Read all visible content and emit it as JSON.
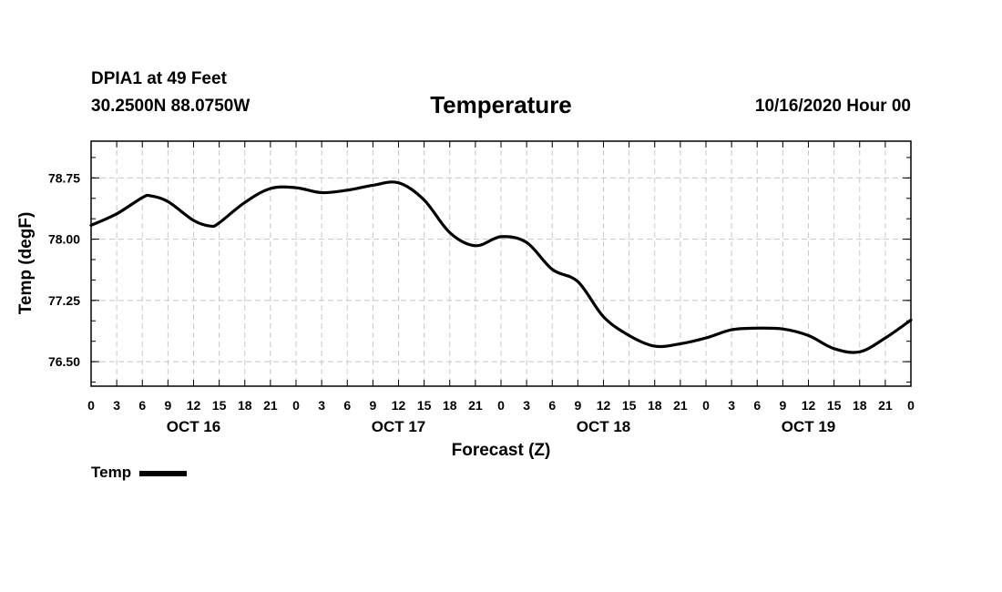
{
  "header": {
    "station": "DPIA1 at 49 Feet",
    "coords": "30.2500N 88.0750W",
    "title": "Temperature",
    "issued": "10/16/2020 Hour 00"
  },
  "legend": {
    "label": "Temp"
  },
  "chart_data": {
    "type": "line",
    "title": "Temperature",
    "xlabel": "Forecast (Z)",
    "ylabel": "Temp (degF)",
    "xlim": [
      0,
      96
    ],
    "ylim": [
      76.2,
      79.2
    ],
    "y_ticks": [
      76.5,
      77.25,
      78.0,
      78.75
    ],
    "y_tick_labels": [
      "76.50",
      "77.25",
      "78.00",
      "78.75"
    ],
    "x_tick_hours": [
      0,
      3,
      6,
      9,
      12,
      15,
      18,
      21,
      24,
      27,
      30,
      33,
      36,
      39,
      42,
      45,
      48,
      51,
      54,
      57,
      60,
      63,
      66,
      69,
      72,
      75,
      78,
      81,
      84,
      87,
      90,
      93,
      96
    ],
    "x_tick_labels": [
      "0",
      "3",
      "6",
      "9",
      "12",
      "15",
      "18",
      "21",
      "0",
      "3",
      "6",
      "9",
      "12",
      "15",
      "18",
      "21",
      "0",
      "3",
      "6",
      "9",
      "12",
      "15",
      "18",
      "21",
      "0",
      "3",
      "6",
      "9",
      "12",
      "15",
      "18",
      "21",
      "0"
    ],
    "day_labels": [
      {
        "hour": 12,
        "label": "OCT 16"
      },
      {
        "hour": 36,
        "label": "OCT 17"
      },
      {
        "hour": 60,
        "label": "OCT 18"
      },
      {
        "hour": 84,
        "label": "OCT 19"
      }
    ],
    "grid": true,
    "legend_position": "bottom-left",
    "series": [
      {
        "name": "Temp",
        "color": "#000000",
        "x": [
          0,
          3,
          6,
          7,
          9,
          12,
          14,
          15,
          18,
          21,
          24,
          27,
          30,
          33,
          36,
          39,
          42,
          45,
          48,
          51,
          54,
          57,
          60,
          63,
          66,
          69,
          72,
          75,
          78,
          81,
          84,
          87,
          90,
          93,
          96
        ],
        "values": [
          78.17,
          78.31,
          78.51,
          78.53,
          78.46,
          78.23,
          78.16,
          78.2,
          78.45,
          78.62,
          78.63,
          78.57,
          78.6,
          78.66,
          78.69,
          78.48,
          78.08,
          77.92,
          78.03,
          77.96,
          77.63,
          77.48,
          77.05,
          76.82,
          76.69,
          76.72,
          76.79,
          76.89,
          76.91,
          76.9,
          76.82,
          76.66,
          76.62,
          76.79,
          77.01
        ]
      }
    ]
  }
}
